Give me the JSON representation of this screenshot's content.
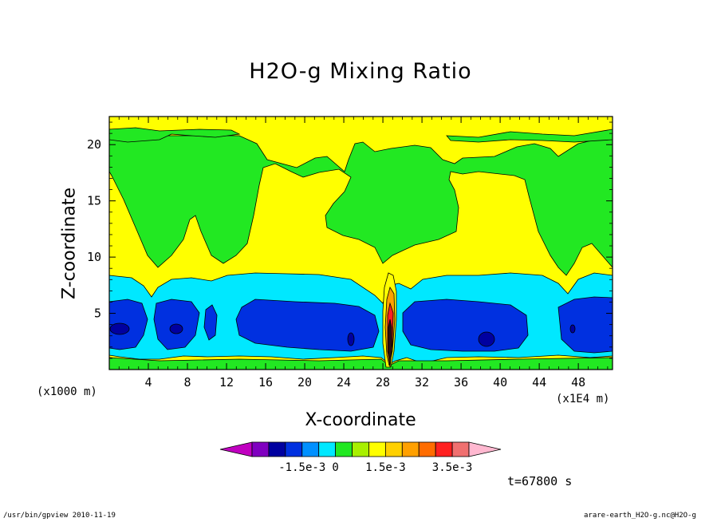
{
  "chart_data": {
    "type": "heatmap",
    "title": "H2O-g Mixing Ratio",
    "xlabel": "X-coordinate",
    "ylabel": "Z-coordinate",
    "x_unit_left": "(x1000 m)",
    "x_unit_right": "(x1E4 m)",
    "xlim": [
      0,
      51.5
    ],
    "ylim": [
      0,
      22.5
    ],
    "x_ticks": [
      4,
      8,
      12,
      16,
      20,
      24,
      28,
      32,
      36,
      40,
      44,
      48
    ],
    "x_tick_labels": [
      "4",
      "8",
      "12",
      "16",
      "20",
      "24",
      "28",
      "32",
      "36",
      "40",
      "44",
      "48"
    ],
    "y_ticks": [
      5,
      10,
      15,
      20
    ],
    "y_tick_labels": [
      "5",
      "10",
      "15",
      "20"
    ],
    "colorbar": {
      "colors": [
        "#c000c0",
        "#8000c0",
        "#0000a0",
        "#0030e0",
        "#0090ff",
        "#00e8ff",
        "#22e822",
        "#a8f000",
        "#ffff00",
        "#ffd000",
        "#ffa000",
        "#ff6c00",
        "#ff2020",
        "#f07070",
        "#ffb8d0"
      ],
      "labels": [
        {
          "text": "-1.5e-3",
          "boundary": 4
        },
        {
          "text": "0",
          "boundary": 6
        },
        {
          "text": "1.5e-3",
          "boundary": 9
        },
        {
          "text": "3.5e-3",
          "boundary": 13
        }
      ]
    },
    "time_label": "t=67800 s"
  },
  "footer": {
    "left": "/usr/bin/gpview   2010-11-19",
    "right": "arare-earth_H2O-g.nc@H2O-g"
  }
}
